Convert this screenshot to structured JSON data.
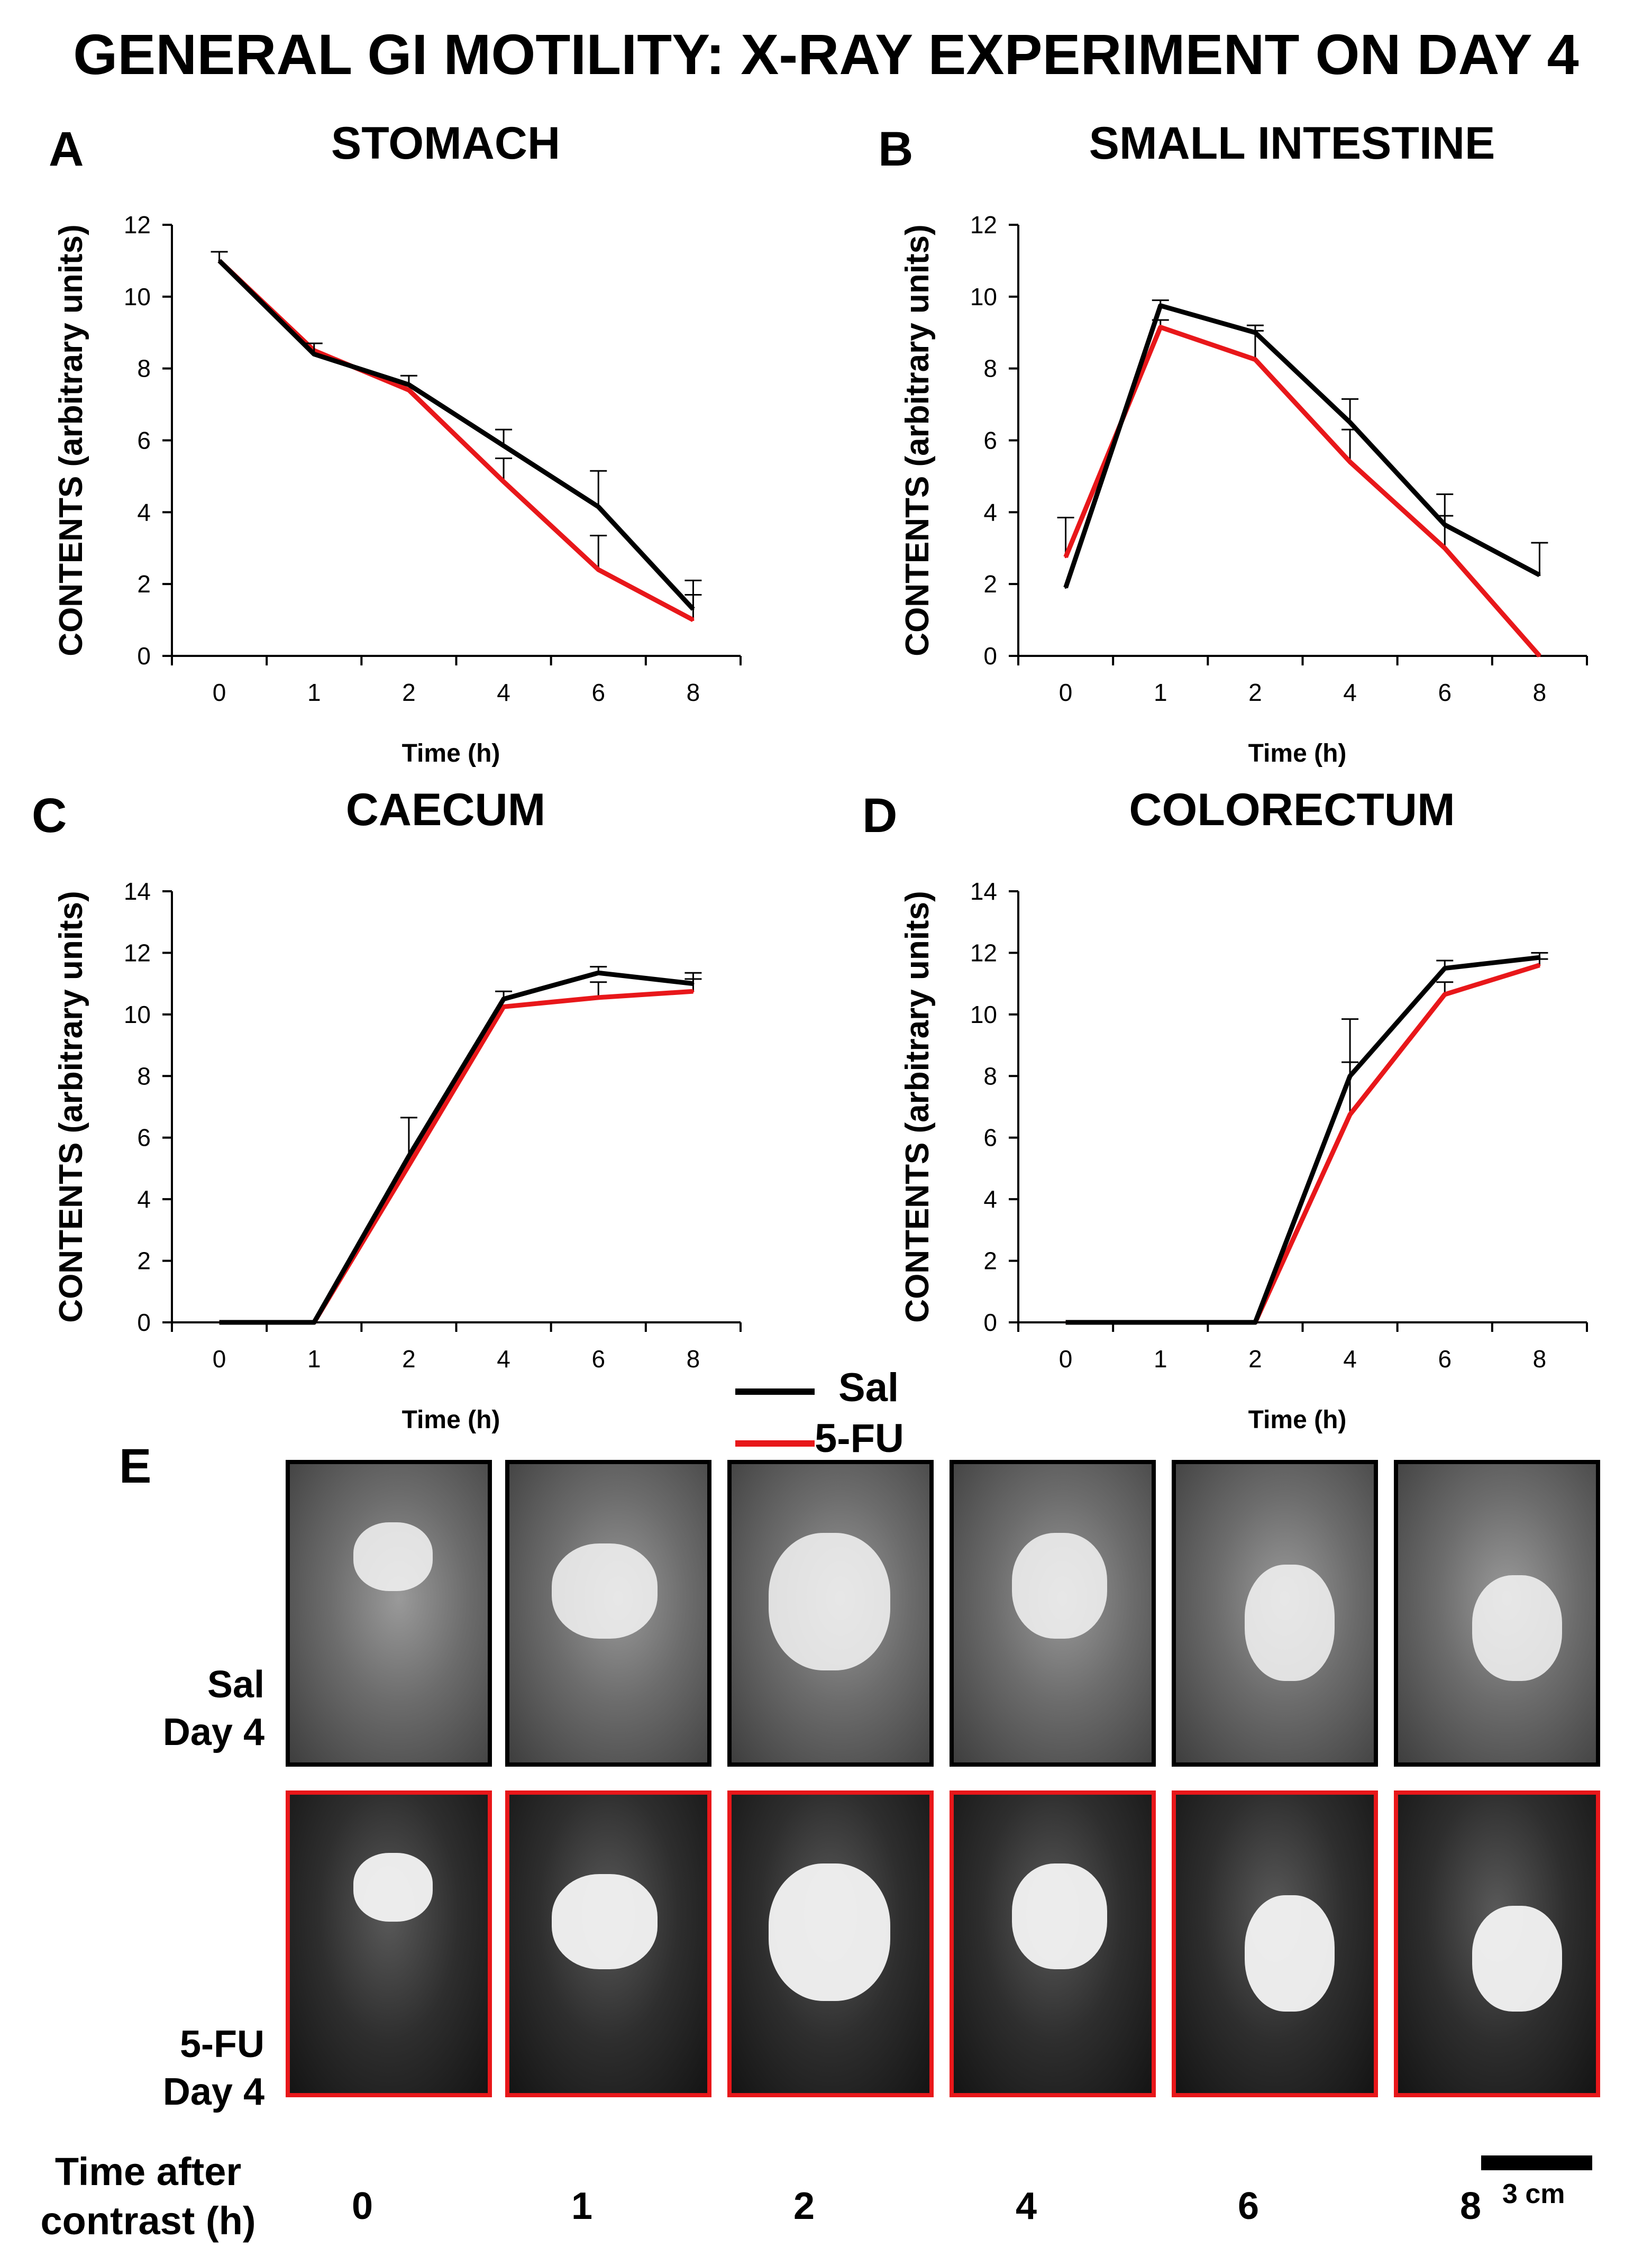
{
  "title": "GENERAL GI MOTILITY: X-RAY EXPERIMENT ON DAY 4",
  "legend": {
    "sal": "Sal",
    "fu": "5-FU",
    "colors": {
      "sal": "#000000",
      "fu": "#e8171a"
    }
  },
  "chart_data": [
    {
      "panel": "A",
      "type": "line",
      "title": "STOMACH",
      "xlabel": "Time (h)",
      "ylabel": "CONTENTS (arbitrary units)",
      "categories": [
        "0",
        "1",
        "2",
        "4",
        "6",
        "8"
      ],
      "ylim": [
        0,
        12
      ],
      "yticks": [
        0,
        2,
        4,
        6,
        8,
        10,
        12
      ],
      "series": [
        {
          "name": "Sal",
          "values": [
            11.0,
            8.4,
            7.55,
            5.85,
            4.15,
            1.3
          ],
          "errors": [
            0.25,
            0.3,
            0.25,
            0.45,
            1.0,
            0.8
          ]
        },
        {
          "name": "5-FU",
          "values": [
            11.0,
            8.5,
            7.4,
            4.85,
            2.4,
            1.0
          ],
          "errors": [
            0,
            0,
            0,
            0.65,
            0.95,
            0.7
          ]
        }
      ]
    },
    {
      "panel": "B",
      "type": "line",
      "title": "SMALL INTESTINE",
      "xlabel": "Time (h)",
      "ylabel": "CONTENTS (arbitrary units)",
      "categories": [
        "0",
        "1",
        "2",
        "4",
        "6",
        "8"
      ],
      "ylim": [
        0,
        12
      ],
      "yticks": [
        0,
        2,
        4,
        6,
        8,
        10,
        12
      ],
      "series": [
        {
          "name": "Sal",
          "values": [
            1.9,
            9.75,
            9.0,
            6.5,
            3.65,
            2.25
          ],
          "errors": [
            0,
            0.15,
            0.2,
            0.65,
            0.85,
            0.9
          ]
        },
        {
          "name": "5-FU",
          "values": [
            2.75,
            9.15,
            8.25,
            5.4,
            3.0,
            0.0
          ],
          "errors": [
            1.1,
            0.2,
            0.8,
            0.9,
            0.9,
            0
          ]
        }
      ]
    },
    {
      "panel": "C",
      "type": "line",
      "title": "CAECUM",
      "xlabel": "Time (h)",
      "ylabel": "CONTENTS (arbitrary units)",
      "categories": [
        "0",
        "1",
        "2",
        "4",
        "6",
        "8"
      ],
      "ylim": [
        0,
        14
      ],
      "yticks": [
        0,
        2,
        4,
        6,
        8,
        10,
        12,
        14
      ],
      "series": [
        {
          "name": "Sal",
          "values": [
            0,
            0,
            5.4,
            10.5,
            11.35,
            11.0
          ],
          "errors": [
            0,
            0,
            1.25,
            0.25,
            0.2,
            0.35
          ]
        },
        {
          "name": "5-FU",
          "values": [
            0,
            0,
            5.1,
            10.25,
            10.55,
            10.75
          ],
          "errors": [
            0,
            0,
            0,
            0,
            0.5,
            0.4
          ]
        }
      ]
    },
    {
      "panel": "D",
      "type": "line",
      "title": "COLORECTUM",
      "xlabel": "Time (h)",
      "ylabel": "CONTENTS (arbitrary units)",
      "categories": [
        "0",
        "1",
        "2",
        "4",
        "6",
        "8"
      ],
      "ylim": [
        0,
        14
      ],
      "yticks": [
        0,
        2,
        4,
        6,
        8,
        10,
        12,
        14
      ],
      "series": [
        {
          "name": "Sal",
          "values": [
            0,
            0,
            0,
            8.0,
            11.5,
            11.85
          ],
          "errors": [
            0,
            0,
            0,
            1.85,
            0.25,
            0.15
          ]
        },
        {
          "name": "5-FU",
          "values": [
            0,
            0,
            0,
            6.75,
            10.65,
            11.6
          ],
          "errors": [
            0,
            0,
            0,
            1.7,
            0.4,
            0.2
          ]
        }
      ]
    }
  ],
  "panel_e": {
    "letter": "E",
    "rows": [
      {
        "label_line1": "Sal",
        "label_line2": "Day 4",
        "frame_color": "#000000"
      },
      {
        "label_line1": "5-FU",
        "label_line2": "Day 4",
        "frame_color": "#e8171a"
      }
    ],
    "time_axis_label_line1": "Time after",
    "time_axis_label_line2": "contrast (h)",
    "times": [
      "0",
      "1",
      "2",
      "4",
      "6",
      "8"
    ],
    "scale_bar_label": "3 cm"
  }
}
